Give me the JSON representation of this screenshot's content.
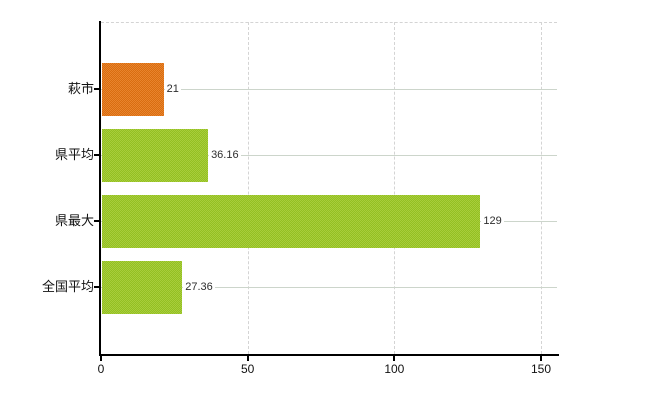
{
  "chart_data": {
    "type": "bar",
    "orientation": "horizontal",
    "title": "",
    "xlabel": "",
    "ylabel": "",
    "categories": [
      "萩市",
      "県平均",
      "県最大",
      "全国平均"
    ],
    "values": [
      21,
      36.16,
      129,
      27.36
    ],
    "value_labels": [
      "21",
      "36.16",
      "129",
      "27.36"
    ],
    "series": [
      {
        "name": "",
        "values": [
          21,
          36.16,
          129,
          27.36
        ]
      }
    ],
    "x_ticks": [
      "0",
      "50",
      "100",
      "150"
    ],
    "x_tick_values": [
      0,
      50,
      100,
      150
    ],
    "xlim": [
      0,
      155.5
    ],
    "grid": true,
    "legend_position": "none",
    "bar_colors": [
      {
        "base": "#e1781e",
        "light": "#e8842d",
        "dark": "#d96d10"
      },
      {
        "base": "#9ec72f",
        "light": "#a8cd3c",
        "dark": "#93c022"
      },
      {
        "base": "#9ec72f",
        "light": "#a8cd3c",
        "dark": "#93c022"
      },
      {
        "base": "#9ec72f",
        "light": "#a8cd3c",
        "dark": "#93c022"
      }
    ],
    "style": {
      "background": "#ffffff",
      "axis_color": "#000000",
      "vertical_grid_color": "#d4d4d4",
      "horizontal_grid_color": "#ccd5cb",
      "category_label_color": "#111111",
      "value_label_color": "#2e2e2e"
    }
  }
}
